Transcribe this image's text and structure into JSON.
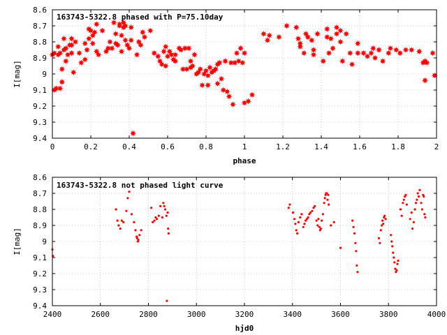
{
  "chart_data": [
    {
      "type": "scatter",
      "title": "163743-5322.8 phased with P=75.10day",
      "xlabel": "phase",
      "ylabel": "I[mag]",
      "xlim": [
        0,
        2
      ],
      "ylim": [
        8.6,
        9.4
      ],
      "y_inverted": true,
      "grid": true,
      "marker": "filled-star",
      "color": "#ff0000",
      "x_ticks": [
        0,
        0.2,
        0.4,
        0.6,
        0.8,
        1,
        1.2,
        1.4,
        1.6,
        1.8,
        2
      ],
      "x_tick_labels": [
        "0",
        "0.2",
        "0.4",
        "0.6",
        "0.8",
        "1",
        "1.2",
        "1.4",
        "1.6",
        "1.8",
        "2"
      ],
      "y_ticks": [
        8.6,
        8.7,
        8.8,
        8.9,
        9,
        9.1,
        9.2,
        9.3,
        9.4
      ],
      "y_tick_labels": [
        "8.6",
        "8.7",
        "8.8",
        "8.9",
        "9",
        "9.1",
        "9.2",
        "9.3",
        "9.4"
      ],
      "points": [
        [
          0.0,
          8.88
        ],
        [
          0.01,
          8.87
        ],
        [
          0.01,
          9.1
        ],
        [
          0.02,
          9.09
        ],
        [
          0.03,
          8.83
        ],
        [
          0.03,
          8.88
        ],
        [
          0.04,
          9.09
        ],
        [
          0.04,
          8.87
        ],
        [
          0.05,
          9.05
        ],
        [
          0.05,
          8.97
        ],
        [
          0.06,
          8.85
        ],
        [
          0.06,
          8.78
        ],
        [
          0.07,
          8.92
        ],
        [
          0.07,
          8.84
        ],
        [
          0.08,
          8.88
        ],
        [
          0.09,
          8.82
        ],
        [
          0.1,
          8.78
        ],
        [
          0.1,
          8.87
        ],
        [
          0.1,
          8.82
        ],
        [
          0.11,
          8.99
        ],
        [
          0.12,
          8.8
        ],
        [
          0.14,
          8.87
        ],
        [
          0.15,
          8.93
        ],
        [
          0.17,
          8.91
        ],
        [
          0.17,
          8.81
        ],
        [
          0.18,
          8.85
        ],
        [
          0.19,
          8.78
        ],
        [
          0.19,
          8.72
        ],
        [
          0.2,
          8.73
        ],
        [
          0.21,
          8.81
        ],
        [
          0.21,
          8.76
        ],
        [
          0.22,
          8.74
        ],
        [
          0.23,
          8.69
        ],
        [
          0.23,
          8.86
        ],
        [
          0.24,
          8.88
        ],
        [
          0.26,
          8.73
        ],
        [
          0.28,
          8.86
        ],
        [
          0.29,
          8.84
        ],
        [
          0.3,
          8.8
        ],
        [
          0.31,
          8.84
        ],
        [
          0.32,
          8.68
        ],
        [
          0.33,
          8.75
        ],
        [
          0.33,
          8.81
        ],
        [
          0.34,
          8.82
        ],
        [
          0.35,
          8.7
        ],
        [
          0.35,
          8.69
        ],
        [
          0.36,
          8.86
        ],
        [
          0.36,
          8.76
        ],
        [
          0.37,
          8.71
        ],
        [
          0.37,
          8.68
        ],
        [
          0.38,
          8.79
        ],
        [
          0.38,
          8.7
        ],
        [
          0.39,
          8.82
        ],
        [
          0.4,
          8.84
        ],
        [
          0.41,
          8.79
        ],
        [
          0.41,
          8.71
        ],
        [
          0.42,
          9.37
        ],
        [
          0.44,
          8.88
        ],
        [
          0.45,
          8.8
        ],
        [
          0.46,
          8.82
        ],
        [
          0.47,
          8.74
        ],
        [
          0.48,
          8.77
        ],
        [
          0.51,
          8.73
        ],
        [
          0.53,
          8.87
        ],
        [
          0.55,
          8.89
        ],
        [
          0.56,
          8.92
        ],
        [
          0.57,
          8.94
        ],
        [
          0.58,
          8.86
        ],
        [
          0.59,
          8.95
        ],
        [
          0.59,
          8.83
        ],
        [
          0.6,
          8.89
        ],
        [
          0.61,
          8.86
        ],
        [
          0.62,
          8.88
        ],
        [
          0.63,
          8.91
        ],
        [
          0.64,
          8.88
        ],
        [
          0.64,
          8.92
        ],
        [
          0.66,
          8.84
        ],
        [
          0.67,
          8.85
        ],
        [
          0.68,
          8.97
        ],
        [
          0.69,
          8.84
        ],
        [
          0.7,
          8.97
        ],
        [
          0.71,
          8.84
        ],
        [
          0.72,
          8.96
        ],
        [
          0.72,
          8.92
        ],
        [
          0.73,
          8.95
        ],
        [
          0.74,
          8.88
        ],
        [
          0.75,
          9.0
        ],
        [
          0.76,
          8.99
        ],
        [
          0.77,
          8.97
        ],
        [
          0.78,
          9.07
        ],
        [
          0.79,
          9.0
        ],
        [
          0.8,
          8.98
        ],
        [
          0.81,
          9.07
        ],
        [
          0.81,
          9.01
        ],
        [
          0.82,
          8.96
        ],
        [
          0.83,
          8.99
        ],
        [
          0.84,
          8.98
        ],
        [
          0.85,
          8.97
        ],
        [
          0.86,
          8.94
        ],
        [
          0.86,
          9.06
        ],
        [
          0.87,
          8.93
        ],
        [
          0.88,
          9.03
        ],
        [
          0.89,
          9.1
        ],
        [
          0.9,
          8.92
        ],
        [
          0.91,
          9.11
        ],
        [
          0.92,
          9.14
        ],
        [
          0.93,
          8.93
        ],
        [
          0.94,
          9.19
        ],
        [
          0.95,
          8.93
        ],
        [
          0.96,
          8.87
        ],
        [
          0.97,
          8.92
        ],
        [
          0.98,
          8.84
        ],
        [
          0.99,
          8.93
        ],
        [
          1.0,
          9.18
        ],
        [
          1.0,
          8.87
        ],
        [
          1.02,
          9.17
        ],
        [
          1.04,
          9.13
        ],
        [
          1.1,
          8.75
        ],
        [
          1.12,
          8.79
        ],
        [
          1.13,
          8.76
        ],
        [
          1.18,
          8.77
        ],
        [
          1.22,
          8.7
        ],
        [
          1.27,
          8.71
        ],
        [
          1.28,
          8.78
        ],
        [
          1.29,
          8.83
        ],
        [
          1.29,
          8.81
        ],
        [
          1.31,
          8.87
        ],
        [
          1.32,
          8.75
        ],
        [
          1.33,
          8.77
        ],
        [
          1.35,
          8.79
        ],
        [
          1.36,
          8.85
        ],
        [
          1.36,
          8.88
        ],
        [
          1.38,
          8.75
        ],
        [
          1.41,
          8.92
        ],
        [
          1.43,
          8.72
        ],
        [
          1.43,
          8.77
        ],
        [
          1.44,
          8.87
        ],
        [
          1.45,
          8.78
        ],
        [
          1.46,
          8.84
        ],
        [
          1.48,
          8.75
        ],
        [
          1.48,
          8.71
        ],
        [
          1.5,
          8.8
        ],
        [
          1.5,
          8.73
        ],
        [
          1.51,
          8.92
        ],
        [
          1.53,
          8.75
        ],
        [
          1.55,
          8.87
        ],
        [
          1.56,
          8.94
        ],
        [
          1.59,
          8.87
        ],
        [
          1.59,
          8.81
        ],
        [
          1.62,
          8.87
        ],
        [
          1.64,
          8.89
        ],
        [
          1.66,
          8.87
        ],
        [
          1.67,
          8.84
        ],
        [
          1.68,
          8.9
        ],
        [
          1.7,
          8.85
        ],
        [
          1.72,
          8.92
        ],
        [
          1.75,
          8.87
        ],
        [
          1.76,
          8.84
        ],
        [
          1.79,
          8.85
        ],
        [
          1.81,
          8.87
        ],
        [
          1.84,
          8.85
        ],
        [
          1.87,
          8.85
        ],
        [
          1.91,
          8.86
        ],
        [
          1.93,
          8.93
        ],
        [
          1.94,
          8.92
        ],
        [
          1.94,
          9.04
        ],
        [
          1.95,
          8.93
        ],
        [
          1.98,
          8.87
        ],
        [
          1.99,
          9.01
        ]
      ]
    },
    {
      "type": "scatter",
      "title": "163743-5322.8 not phased light curve",
      "xlabel": "hjd0",
      "ylabel": "I[mag]",
      "xlim": [
        2400,
        4000
      ],
      "ylim": [
        8.6,
        9.4
      ],
      "y_inverted": true,
      "grid": true,
      "marker": "small-dot",
      "color": "#ff0000",
      "x_ticks": [
        2400,
        2600,
        2800,
        3000,
        3200,
        3400,
        3600,
        3800,
        4000
      ],
      "x_tick_labels": [
        "2400",
        "2600",
        "2800",
        "3000",
        "3200",
        "3400",
        "3600",
        "3800",
        "4000"
      ],
      "y_ticks": [
        8.6,
        8.7,
        8.8,
        8.9,
        9,
        9.1,
        9.2,
        9.3,
        9.4
      ],
      "y_tick_labels": [
        "8.6",
        "8.7",
        "8.8",
        "8.9",
        "9",
        "9.1",
        "9.2",
        "9.3",
        "9.4"
      ],
      "points": [
        [
          2400,
          9.05
        ],
        [
          2402,
          9.09
        ],
        [
          2665,
          8.8
        ],
        [
          2671,
          8.87
        ],
        [
          2676,
          8.9
        ],
        [
          2683,
          8.92
        ],
        [
          2689,
          8.87
        ],
        [
          2696,
          8.88
        ],
        [
          2708,
          8.81
        ],
        [
          2714,
          8.73
        ],
        [
          2720,
          8.69
        ],
        [
          2730,
          8.83
        ],
        [
          2740,
          8.88
        ],
        [
          2746,
          8.93
        ],
        [
          2751,
          8.97
        ],
        [
          2753,
          8.98
        ],
        [
          2756,
          9.0
        ],
        [
          2758,
          8.99
        ],
        [
          2763,
          8.96
        ],
        [
          2770,
          8.93
        ],
        [
          2812,
          8.79
        ],
        [
          2818,
          8.88
        ],
        [
          2825,
          8.87
        ],
        [
          2830,
          8.85
        ],
        [
          2835,
          8.86
        ],
        [
          2843,
          8.84
        ],
        [
          2850,
          8.78
        ],
        [
          2858,
          8.85
        ],
        [
          2862,
          8.76
        ],
        [
          2866,
          8.78
        ],
        [
          2870,
          8.8
        ],
        [
          2875,
          8.84
        ],
        [
          2877,
          9.37
        ],
        [
          2880,
          8.82
        ],
        [
          2882,
          8.92
        ],
        [
          2884,
          8.95
        ],
        [
          3384,
          8.79
        ],
        [
          3389,
          8.77
        ],
        [
          3402,
          8.82
        ],
        [
          3408,
          8.86
        ],
        [
          3412,
          8.89
        ],
        [
          3416,
          8.93
        ],
        [
          3420,
          8.95
        ],
        [
          3425,
          8.88
        ],
        [
          3432,
          8.85
        ],
        [
          3438,
          8.83
        ],
        [
          3445,
          8.91
        ],
        [
          3450,
          8.89
        ],
        [
          3455,
          8.87
        ],
        [
          3460,
          8.86
        ],
        [
          3465,
          8.85
        ],
        [
          3470,
          8.83
        ],
        [
          3475,
          8.82
        ],
        [
          3482,
          8.81
        ],
        [
          3488,
          8.79
        ],
        [
          3493,
          8.78
        ],
        [
          3500,
          8.87
        ],
        [
          3505,
          8.9
        ],
        [
          3508,
          8.86
        ],
        [
          3512,
          8.91
        ],
        [
          3515,
          8.93
        ],
        [
          3518,
          8.92
        ],
        [
          3522,
          8.87
        ],
        [
          3527,
          8.83
        ],
        [
          3532,
          8.76
        ],
        [
          3535,
          8.73
        ],
        [
          3538,
          8.71
        ],
        [
          3540,
          8.7
        ],
        [
          3543,
          8.7
        ],
        [
          3546,
          8.74
        ],
        [
          3549,
          8.71
        ],
        [
          3551,
          8.77
        ],
        [
          3560,
          8.9
        ],
        [
          3573,
          8.88
        ],
        [
          3600,
          9.04
        ],
        [
          3650,
          8.87
        ],
        [
          3654,
          8.91
        ],
        [
          3658,
          8.95
        ],
        [
          3662,
          9.01
        ],
        [
          3665,
          9.06
        ],
        [
          3668,
          9.15
        ],
        [
          3671,
          9.19
        ],
        [
          3760,
          8.98
        ],
        [
          3764,
          9.01
        ],
        [
          3768,
          8.93
        ],
        [
          3772,
          8.9
        ],
        [
          3775,
          8.87
        ],
        [
          3778,
          8.89
        ],
        [
          3781,
          8.85
        ],
        [
          3784,
          8.84
        ],
        [
          3788,
          8.86
        ],
        [
          3810,
          8.96
        ],
        [
          3813,
          9.0
        ],
        [
          3816,
          9.03
        ],
        [
          3819,
          9.07
        ],
        [
          3822,
          9.1
        ],
        [
          3825,
          9.13
        ],
        [
          3828,
          9.17
        ],
        [
          3831,
          9.19
        ],
        [
          3834,
          9.18
        ],
        [
          3837,
          9.14
        ],
        [
          3840,
          9.12
        ],
        [
          3850,
          8.8
        ],
        [
          3855,
          8.84
        ],
        [
          3860,
          8.76
        ],
        [
          3864,
          8.74
        ],
        [
          3868,
          8.72
        ],
        [
          3872,
          8.71
        ],
        [
          3876,
          8.77
        ],
        [
          3890,
          8.86
        ],
        [
          3896,
          8.82
        ],
        [
          3900,
          8.92
        ],
        [
          3905,
          8.88
        ],
        [
          3910,
          8.8
        ],
        [
          3914,
          8.76
        ],
        [
          3918,
          8.74
        ],
        [
          3922,
          8.7
        ],
        [
          3926,
          8.72
        ],
        [
          3930,
          8.68
        ],
        [
          3936,
          8.76
        ],
        [
          3940,
          8.8
        ],
        [
          3944,
          8.71
        ],
        [
          3947,
          8.72
        ],
        [
          3950,
          8.83
        ],
        [
          3953,
          8.85
        ]
      ]
    }
  ]
}
